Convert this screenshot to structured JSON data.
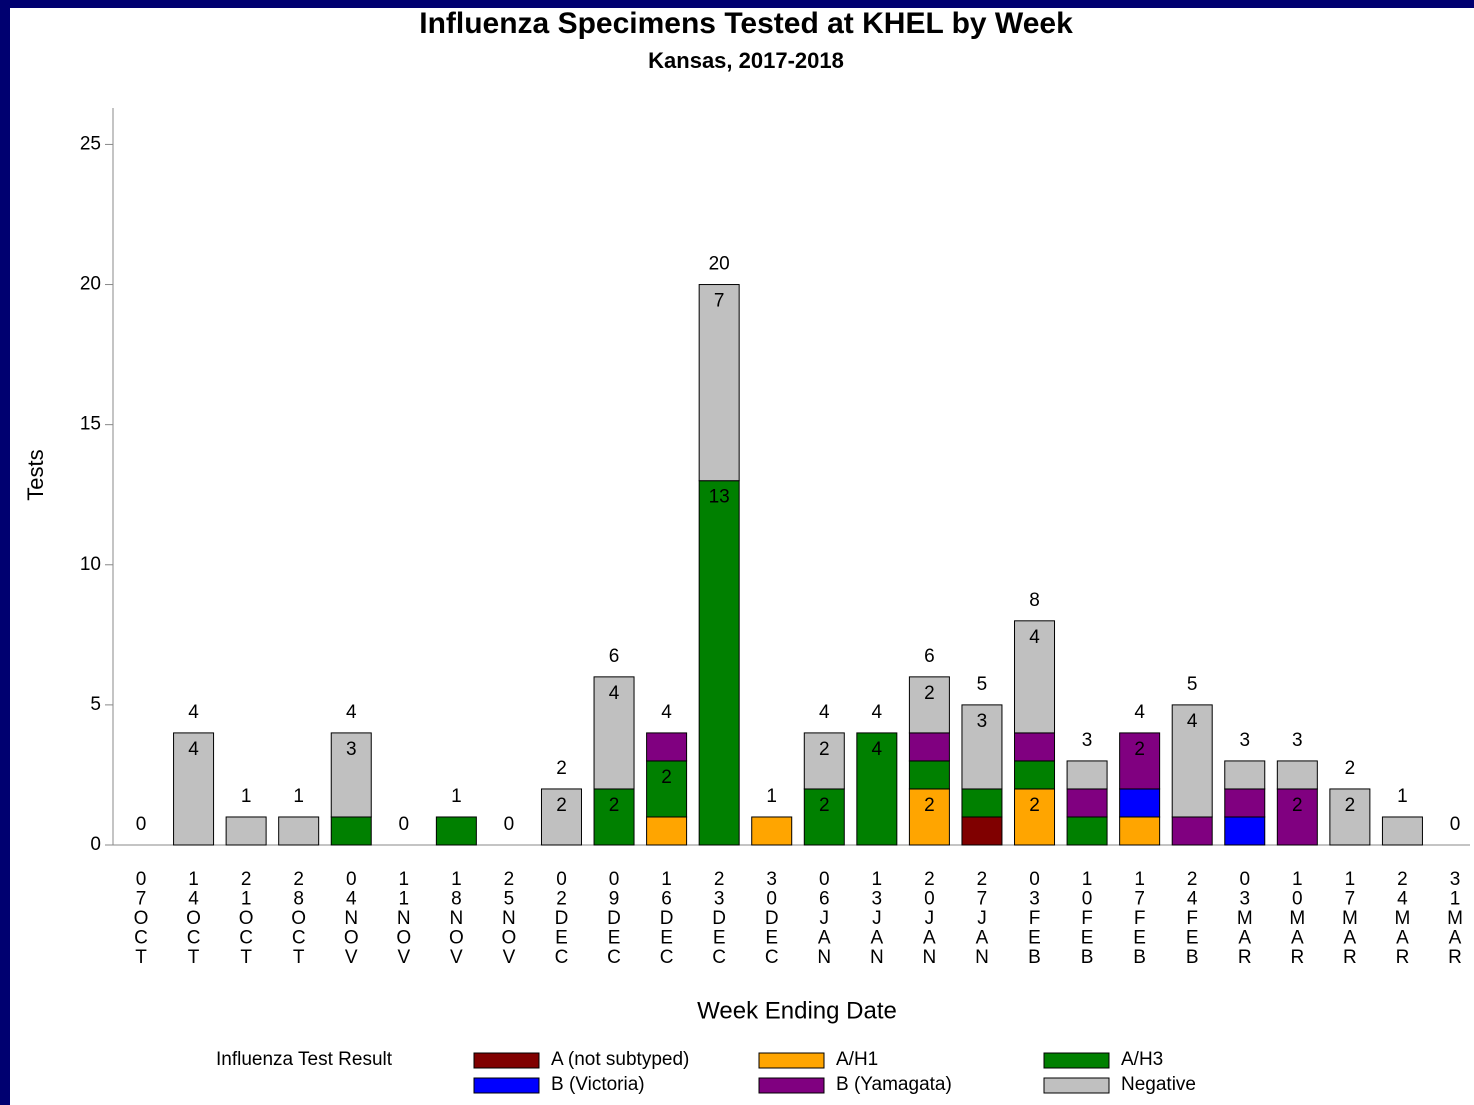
{
  "chart_data": {
    "type": "stacked_bar",
    "title": "Influenza Specimens Tested at KHEL by Week",
    "subtitle": "Kansas, 2017-2018",
    "x_label": "Week Ending Date",
    "y_label": "Tests",
    "legend_title": "Influenza Test Result",
    "categories": [
      "07OCT",
      "14OCT",
      "21OCT",
      "28OCT",
      "04NOV",
      "11NOV",
      "18NOV",
      "25NOV",
      "02DEC",
      "09DEC",
      "16DEC",
      "23DEC",
      "30DEC",
      "06JAN",
      "13JAN",
      "20JAN",
      "27JAN",
      "03FEB",
      "10FEB",
      "17FEB",
      "24FEB",
      "03MAR",
      "10MAR",
      "17MAR",
      "24MAR",
      "31MAR"
    ],
    "series": [
      {
        "name": "A (not subtyped)",
        "color": "#800000",
        "values": [
          0,
          0,
          0,
          0,
          0,
          0,
          0,
          0,
          0,
          0,
          0,
          0,
          0,
          0,
          0,
          0,
          1,
          0,
          0,
          0,
          0,
          0,
          0,
          0,
          0,
          0
        ]
      },
      {
        "name": "A/H1",
        "color": "#ffa500",
        "values": [
          0,
          0,
          0,
          0,
          0,
          0,
          0,
          0,
          0,
          0,
          1,
          0,
          1,
          0,
          0,
          2,
          0,
          2,
          0,
          1,
          0,
          0,
          0,
          0,
          0,
          0
        ]
      },
      {
        "name": "A/H3",
        "color": "#008000",
        "values": [
          0,
          0,
          0,
          0,
          1,
          0,
          1,
          0,
          0,
          2,
          2,
          13,
          0,
          2,
          4,
          1,
          1,
          1,
          1,
          0,
          0,
          0,
          0,
          0,
          0,
          0
        ]
      },
      {
        "name": "B (Victoria)",
        "color": "#0000ff",
        "values": [
          0,
          0,
          0,
          0,
          0,
          0,
          0,
          0,
          0,
          0,
          0,
          0,
          0,
          0,
          0,
          0,
          0,
          0,
          0,
          1,
          0,
          1,
          0,
          0,
          0,
          0
        ]
      },
      {
        "name": "B (Yamagata)",
        "color": "#800080",
        "values": [
          0,
          0,
          0,
          0,
          0,
          0,
          0,
          0,
          0,
          0,
          1,
          0,
          0,
          0,
          0,
          1,
          0,
          1,
          1,
          2,
          1,
          1,
          2,
          0,
          0,
          0
        ]
      },
      {
        "name": "Negative",
        "color": "#c0c0c0",
        "values": [
          0,
          4,
          1,
          1,
          3,
          0,
          0,
          0,
          2,
          4,
          0,
          7,
          0,
          2,
          0,
          2,
          3,
          4,
          1,
          0,
          4,
          1,
          1,
          2,
          1,
          0
        ]
      }
    ],
    "totals": [
      0,
      4,
      1,
      1,
      4,
      0,
      1,
      0,
      2,
      6,
      4,
      20,
      1,
      4,
      4,
      6,
      5,
      8,
      3,
      4,
      5,
      3,
      3,
      2,
      1,
      0
    ],
    "ylim": [
      0,
      26.3
    ],
    "yticks": [
      0,
      5,
      10,
      15,
      20,
      25
    ]
  }
}
